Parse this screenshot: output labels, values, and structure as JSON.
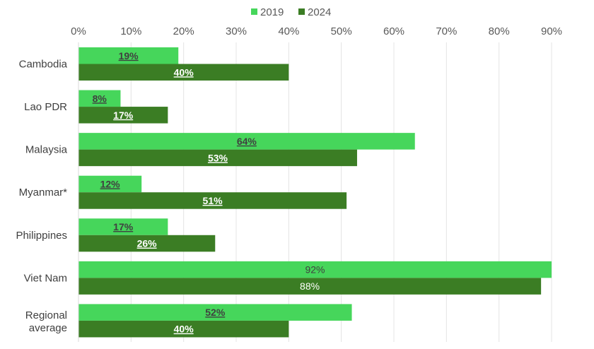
{
  "chart_data": {
    "type": "bar",
    "orientation": "horizontal",
    "categories": [
      "Cambodia",
      "Lao PDR",
      "Malaysia",
      "Myanmar*",
      "Philippines",
      "Viet Nam",
      "Regional average"
    ],
    "series": [
      {
        "name": "2019",
        "color": "#46d65b",
        "label_color": "#404040",
        "values": [
          19,
          8,
          64,
          12,
          17,
          92,
          52
        ],
        "labels": [
          "19%",
          "8%",
          "64%",
          "12%",
          "17%",
          "92%",
          "52%"
        ]
      },
      {
        "name": "2024",
        "color": "#3b7d24",
        "label_color": "#ffffff",
        "values": [
          40,
          17,
          53,
          51,
          26,
          88,
          40
        ],
        "labels": [
          "40%",
          "17%",
          "53%",
          "51%",
          "26%",
          "88%",
          "40%"
        ]
      }
    ],
    "emphasized_labels": [
      true,
      true,
      true,
      true,
      true,
      false,
      true
    ],
    "xlim": [
      0,
      90
    ],
    "xticks": [
      "0%",
      "10%",
      "20%",
      "30%",
      "40%",
      "50%",
      "60%",
      "70%",
      "80%",
      "90%"
    ],
    "xaxis_position": "top",
    "grid": true,
    "legend_position": "top-center",
    "title": "",
    "xlabel": "",
    "ylabel": ""
  }
}
